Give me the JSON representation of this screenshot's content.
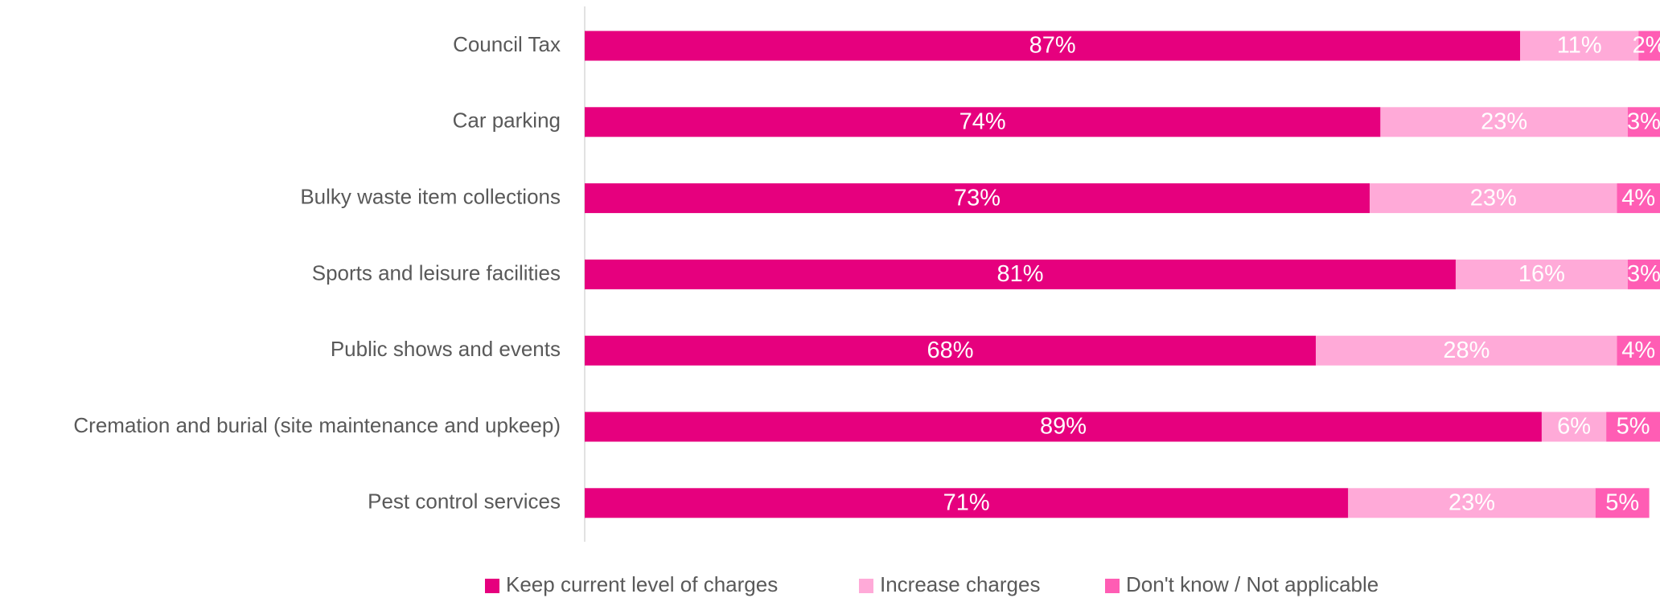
{
  "chart_data": {
    "type": "stacked-bar-horizontal",
    "categories": [
      "Council Tax",
      "Car parking",
      "Bulky waste item collections",
      "Sports and leisure facilities",
      "Public shows and events",
      "Cremation and burial (site maintenance and upkeep)",
      "Pest control services"
    ],
    "series": [
      {
        "name": "Keep current level of charges",
        "color": "#e6007e",
        "values": [
          87,
          74,
          73,
          81,
          68,
          89,
          71
        ],
        "value_labels": [
          "87%",
          "74%",
          "73%",
          "81%",
          "68%",
          "89%",
          "71%"
        ]
      },
      {
        "name": "Increase charges",
        "color": "#ffaad8",
        "values": [
          11,
          23,
          23,
          16,
          28,
          6,
          23
        ],
        "value_labels": [
          "11%",
          "23%",
          "23%",
          "16%",
          "28%",
          "6%",
          "23%"
        ]
      },
      {
        "name": "Don't know / Not applicable",
        "color": "#ff5db4",
        "values": [
          2,
          3,
          4,
          3,
          4,
          5,
          5
        ],
        "value_labels": [
          "2%",
          "3%",
          "4%",
          "3%",
          "4%",
          "5%",
          "5%"
        ]
      }
    ],
    "xlim": [
      0,
      100
    ],
    "legend": "bottom"
  }
}
